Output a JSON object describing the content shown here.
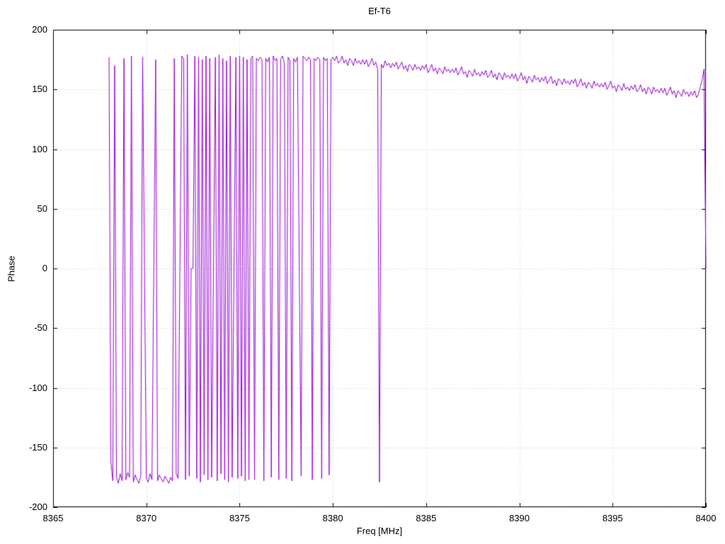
{
  "page": {
    "background": "#ffffff",
    "text_color": "#000000",
    "grid_color": "#c8c8c8",
    "border_color": "#000000"
  },
  "chart_data": {
    "type": "line",
    "title": "Ef-T6",
    "xlabel": "Freq [MHz]",
    "ylabel": "Phase",
    "xlim": [
      8365,
      8400
    ],
    "ylim": [
      -200,
      200
    ],
    "x_ticks": [
      8365,
      8370,
      8375,
      8380,
      8385,
      8390,
      8395,
      8400
    ],
    "y_ticks": [
      -200,
      -150,
      -100,
      -50,
      0,
      50,
      100,
      150,
      200
    ],
    "grid": true,
    "legend_position": "none",
    "line_color": "#9400d3",
    "series": [
      {
        "name": "Ef-T6",
        "x_start": 8368.0,
        "x_step": 0.1,
        "y": [
          177,
          -162,
          -178,
          170,
          -175,
          -180,
          -172,
          -178,
          176,
          -177,
          -171,
          -175,
          178,
          -179,
          -173,
          -177,
          -180,
          -174,
          177,
          0,
          -176,
          -179,
          -172,
          -177,
          0,
          175,
          -178,
          -173,
          -176,
          -179,
          -174,
          -177,
          -180,
          -175,
          -178,
          176,
          -172,
          -176,
          0,
          178,
          176,
          -177,
          179,
          -174,
          0,
          0,
          178,
          -176,
          177,
          -179,
          175,
          -173,
          178,
          -177,
          176,
          -175,
          0,
          177,
          -178,
          179,
          -172,
          176,
          -177,
          174,
          -179,
          178,
          -175,
          0,
          177,
          -176,
          178,
          -174,
          177,
          -178,
          175,
          -177,
          176,
          178,
          -177,
          176,
          174,
          177,
          175,
          -178,
          176,
          173,
          177,
          -175,
          178,
          174,
          176,
          -177,
          175,
          178,
          172,
          -176,
          177,
          174,
          -178,
          176,
          173,
          177,
          0,
          -174,
          178,
          176,
          174,
          177,
          175,
          -177,
          176,
          174,
          177,
          175,
          -176,
          177,
          174,
          176,
          -173,
          175,
          177,
          174,
          178,
          172,
          174,
          178,
          172,
          175,
          170,
          176,
          174,
          170,
          176,
          172,
          174,
          171,
          175,
          171,
          175,
          169,
          172,
          176,
          170,
          173,
          167,
          -179,
          171,
          168,
          174,
          170,
          172,
          168,
          172,
          169,
          173,
          167,
          170,
          173,
          167,
          170,
          165,
          171,
          169,
          166,
          171,
          167,
          169,
          166,
          170,
          167,
          171,
          164,
          167,
          171,
          165,
          168,
          163,
          168,
          166,
          163,
          169,
          165,
          167,
          164,
          167,
          164,
          168,
          162,
          165,
          169,
          163,
          165,
          160,
          166,
          164,
          161,
          167,
          162,
          164,
          161,
          165,
          162,
          166,
          160,
          162,
          166,
          160,
          163,
          158,
          164,
          162,
          158,
          164,
          160,
          162,
          159,
          163,
          159,
          163,
          157,
          160,
          164,
          158,
          161,
          155,
          161,
          159,
          156,
          162,
          158,
          160,
          156,
          160,
          157,
          161,
          155,
          158,
          161,
          155,
          158,
          153,
          159,
          157,
          154,
          159,
          155,
          157,
          154,
          158,
          155,
          159,
          152,
          155,
          159,
          153,
          156,
          151,
          156,
          154,
          151,
          157,
          153,
          155,
          152,
          155,
          152,
          156,
          150,
          153,
          157,
          151,
          153,
          148,
          154,
          152,
          149,
          155,
          150,
          152,
          149,
          153,
          150,
          154,
          148,
          150,
          154,
          148,
          151,
          146,
          152,
          150,
          146,
          152,
          148,
          150,
          147,
          151,
          147,
          151,
          145,
          148,
          152,
          146,
          149,
          143,
          149,
          147,
          144,
          150,
          146,
          148,
          144,
          148,
          145,
          149,
          143,
          146,
          152,
          158,
          167,
          0
        ]
      }
    ]
  }
}
